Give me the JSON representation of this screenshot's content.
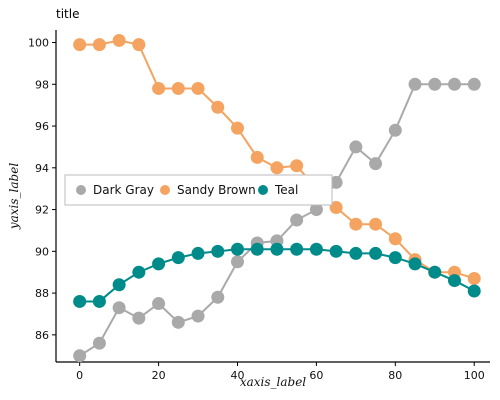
{
  "chart_data": {
    "type": "line",
    "title": "title",
    "xlabel": "xaxis_label",
    "ylabel": "yaxis_label",
    "xlim": [
      -6,
      104
    ],
    "ylim": [
      84.7,
      100.6
    ],
    "xticks": [
      0,
      20,
      40,
      60,
      80,
      100
    ],
    "yticks": [
      86,
      88,
      90,
      92,
      94,
      96,
      98,
      100
    ],
    "grid": false,
    "legend_position": "left",
    "series": [
      {
        "name": "Dark Gray",
        "color": "#a9a9a9",
        "x": [
          0,
          5,
          10,
          15,
          20,
          25,
          30,
          35,
          40,
          45,
          50,
          55,
          60,
          65,
          70,
          75,
          80,
          85,
          90,
          95,
          100
        ],
        "y": [
          85.0,
          85.6,
          87.3,
          86.8,
          87.5,
          86.6,
          86.9,
          87.8,
          89.5,
          90.4,
          90.5,
          91.5,
          92.0,
          93.3,
          95.0,
          94.2,
          95.8,
          98.0,
          98.0,
          98.0,
          98.0
        ]
      },
      {
        "name": "Sandy Brown",
        "color": "#f4a460",
        "x": [
          0,
          5,
          10,
          15,
          20,
          25,
          30,
          35,
          40,
          45,
          50,
          55,
          60,
          65,
          70,
          75,
          80,
          85,
          90,
          95,
          100
        ],
        "y": [
          99.9,
          99.9,
          100.1,
          99.9,
          97.8,
          97.8,
          97.8,
          96.9,
          95.9,
          94.5,
          94.0,
          94.1,
          93.0,
          92.1,
          91.3,
          91.3,
          90.6,
          89.6,
          89.0,
          89.0,
          88.7
        ]
      },
      {
        "name": "Teal",
        "color": "#008b8b",
        "x": [
          0,
          5,
          10,
          15,
          20,
          25,
          30,
          35,
          40,
          45,
          50,
          55,
          60,
          65,
          70,
          75,
          80,
          85,
          90,
          95,
          100
        ],
        "y": [
          87.6,
          87.6,
          88.4,
          89.0,
          89.4,
          89.7,
          89.9,
          90.0,
          90.1,
          90.1,
          90.1,
          90.1,
          90.1,
          90.0,
          89.9,
          89.9,
          89.7,
          89.4,
          89.0,
          88.6,
          88.1
        ]
      }
    ],
    "legend": [
      "Dark Gray",
      "Sandy Brown",
      "Teal"
    ]
  }
}
